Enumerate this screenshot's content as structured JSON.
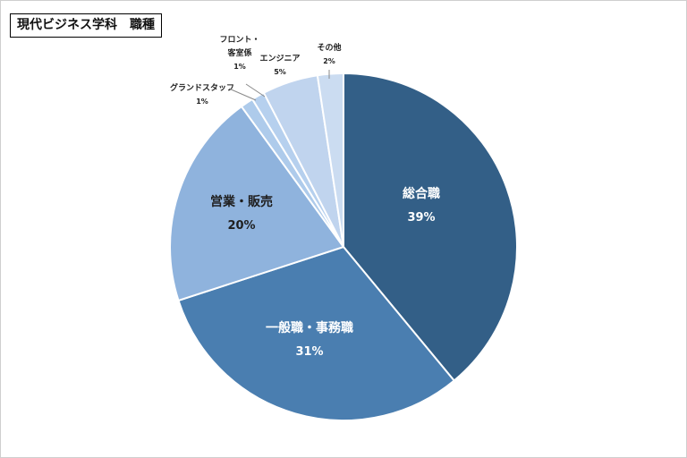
{
  "chart_data": {
    "type": "pie",
    "title": "現代ビジネス学科　職種",
    "slices": [
      {
        "label": "総合職",
        "percent_label": "39%",
        "value": 39,
        "color": "#335f87"
      },
      {
        "label": "一般職・事務職",
        "percent_label": "31%",
        "value": 31,
        "color": "#4a7eb0"
      },
      {
        "label": "営業・販売",
        "percent_label": "20%",
        "value": 20,
        "color": "#8fb3dd"
      },
      {
        "label": "グランドスタッフ",
        "percent_label": "1%",
        "value": 1.2,
        "color": "#aecbeb"
      },
      {
        "label": "フロント・客室係",
        "percent_label": "1%",
        "value": 1.2,
        "color": "#b6d0ee"
      },
      {
        "label": "エンジニア",
        "percent_label": "5%",
        "value": 5.2,
        "color": "#c0d4ee"
      },
      {
        "label": "その他",
        "percent_label": "2%",
        "value": 2.4,
        "color": "#cbdcf1"
      }
    ]
  }
}
